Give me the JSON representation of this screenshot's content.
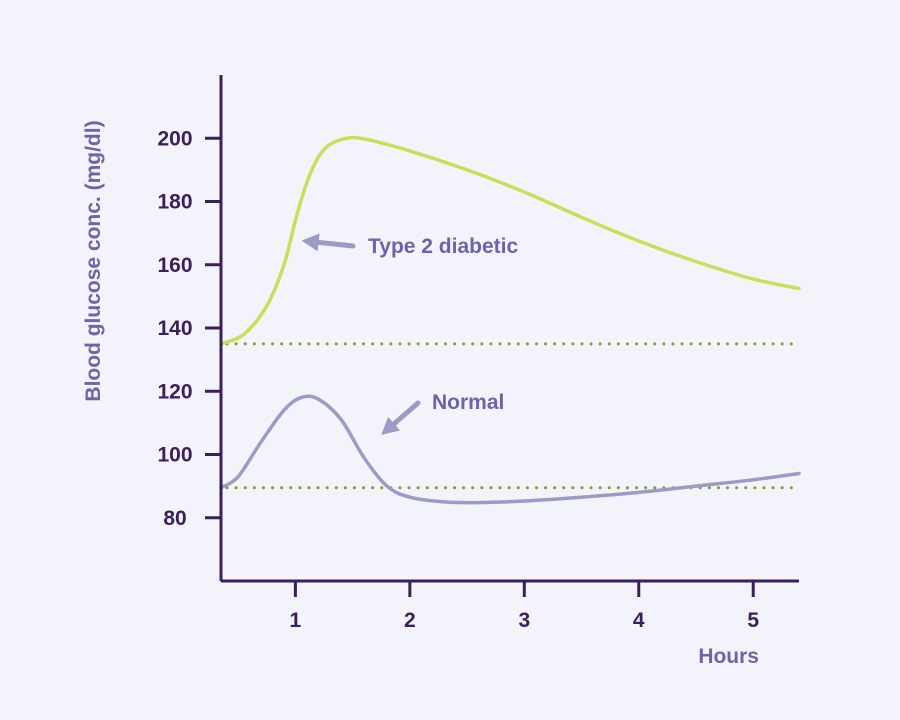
{
  "chart_data": {
    "type": "line",
    "xlabel": "Hours",
    "ylabel": "Blood glucose conc. (mg/dl)",
    "xlim": [
      0.35,
      5.4
    ],
    "ylim": [
      60,
      220
    ],
    "xticks": [
      1,
      2,
      3,
      4,
      5
    ],
    "yticks": [
      80,
      100,
      120,
      140,
      160,
      180,
      200
    ],
    "grid": false,
    "series": [
      {
        "name": "Type 2 diabetic",
        "color": "#c5e15a",
        "points": [
          [
            0.35,
            135
          ],
          [
            0.55,
            138
          ],
          [
            0.75,
            147
          ],
          [
            0.9,
            160
          ],
          [
            1.0,
            174
          ],
          [
            1.1,
            186
          ],
          [
            1.2,
            194
          ],
          [
            1.3,
            198
          ],
          [
            1.45,
            200
          ],
          [
            1.6,
            199.8
          ],
          [
            2.0,
            196
          ],
          [
            2.5,
            190
          ],
          [
            3.0,
            183
          ],
          [
            3.5,
            175
          ],
          [
            4.0,
            167.5
          ],
          [
            4.5,
            161
          ],
          [
            5.0,
            155.5
          ],
          [
            5.4,
            152.5
          ]
        ]
      },
      {
        "name": "Normal",
        "color": "#9b9cc6",
        "points": [
          [
            0.35,
            89.5
          ],
          [
            0.5,
            93
          ],
          [
            0.7,
            104
          ],
          [
            0.9,
            114
          ],
          [
            1.05,
            118
          ],
          [
            1.2,
            117.5
          ],
          [
            1.4,
            111
          ],
          [
            1.6,
            99
          ],
          [
            1.8,
            90
          ],
          [
            2.0,
            86.5
          ],
          [
            2.3,
            85
          ],
          [
            2.6,
            84.8
          ],
          [
            3.0,
            85.3
          ],
          [
            3.5,
            86.5
          ],
          [
            4.0,
            88
          ],
          [
            4.5,
            90
          ],
          [
            5.0,
            92
          ],
          [
            5.4,
            94
          ]
        ]
      }
    ],
    "reference_lines": [
      {
        "y": 135,
        "style": "dotted",
        "color": "#7fa32a"
      },
      {
        "y": 89.5,
        "style": "dotted",
        "color": "#7fa32a"
      }
    ],
    "annotations": [
      {
        "text": "Type 2 diabetic",
        "series": "Type 2 diabetic",
        "arrow_to": [
          0.95,
          167
        ]
      },
      {
        "text": "Normal",
        "series": "Normal",
        "arrow_to": [
          1.75,
          104
        ]
      }
    ]
  },
  "colors": {
    "background": "#f2f3fb",
    "axis": "#3d1e5c",
    "axis_title": "#7163a8",
    "annotation": "#6a64ad",
    "arrow": "#9b9cc6"
  }
}
